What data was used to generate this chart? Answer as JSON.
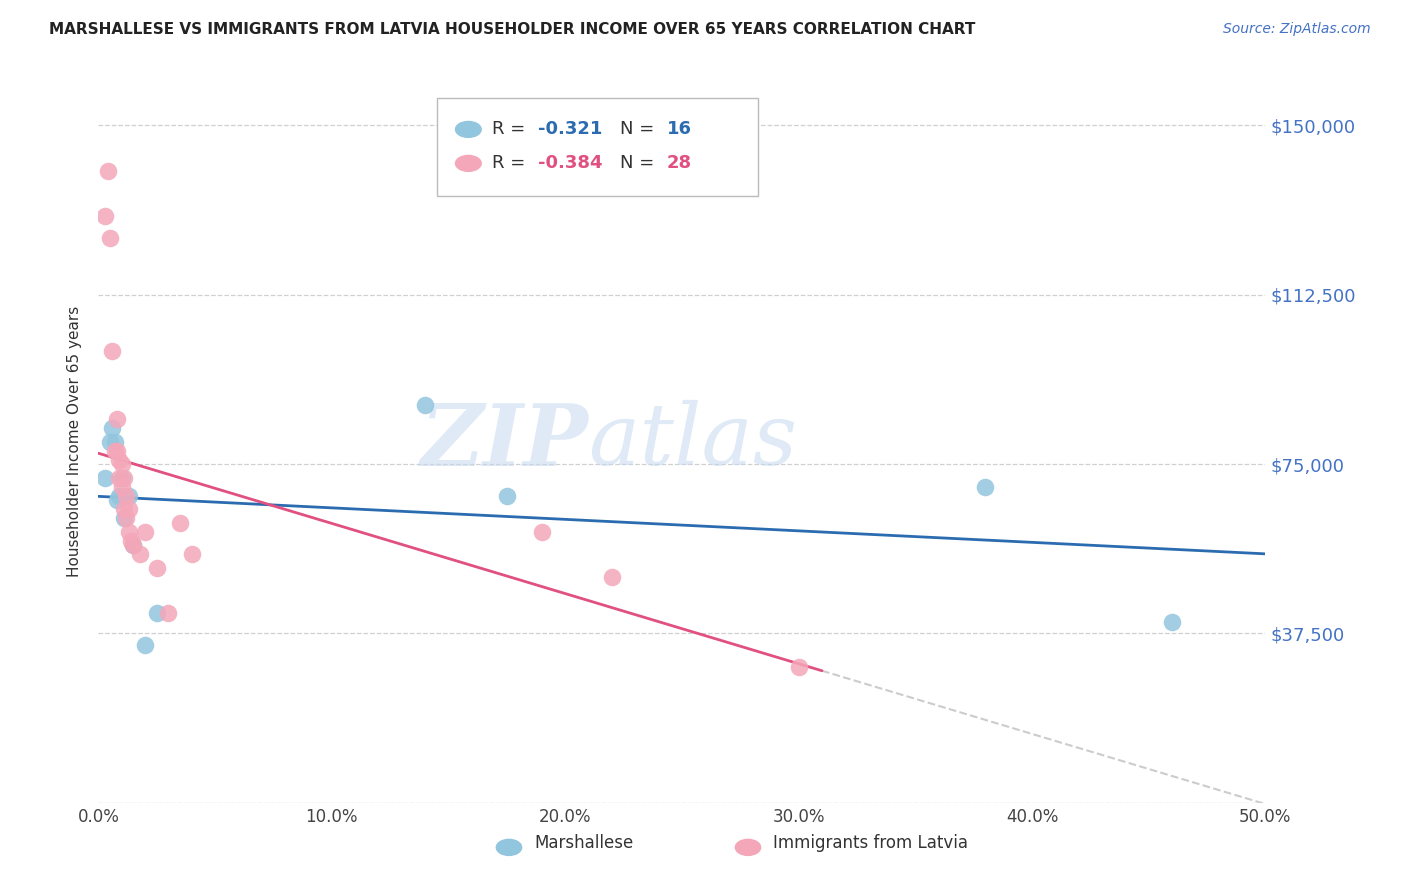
{
  "title": "MARSHALLESE VS IMMIGRANTS FROM LATVIA HOUSEHOLDER INCOME OVER 65 YEARS CORRELATION CHART",
  "source": "Source: ZipAtlas.com",
  "ylabel": "Householder Income Over 65 years",
  "legend_label1": "Marshallese",
  "legend_label2": "Immigrants from Latvia",
  "r1": "-0.321",
  "n1": "16",
  "r2": "-0.384",
  "n2": "28",
  "xmin": 0.0,
  "xmax": 0.5,
  "ymin": 0,
  "ymax": 160000,
  "yticks": [
    0,
    37500,
    75000,
    112500,
    150000
  ],
  "ytick_labels": [
    "",
    "$37,500",
    "$75,000",
    "$112,500",
    "$150,000"
  ],
  "xtick_labels": [
    "0.0%",
    "10.0%",
    "20.0%",
    "30.0%",
    "40.0%",
    "50.0%"
  ],
  "xticks": [
    0.0,
    0.1,
    0.2,
    0.3,
    0.4,
    0.5
  ],
  "color_blue": "#92c5de",
  "color_pink": "#f4a7b9",
  "line_blue": "#2b6cb0",
  "line_pink": "#e05080",
  "blue_x": [
    0.003,
    0.005,
    0.006,
    0.007,
    0.008,
    0.009,
    0.01,
    0.011,
    0.013,
    0.015,
    0.02,
    0.025,
    0.14,
    0.175,
    0.38,
    0.46
  ],
  "blue_y": [
    72000,
    80000,
    83000,
    80000,
    67000,
    68000,
    72000,
    63000,
    68000,
    57000,
    35000,
    42000,
    88000,
    68000,
    70000,
    40000
  ],
  "pink_x": [
    0.003,
    0.004,
    0.005,
    0.006,
    0.007,
    0.008,
    0.008,
    0.009,
    0.009,
    0.01,
    0.01,
    0.011,
    0.011,
    0.012,
    0.012,
    0.013,
    0.013,
    0.014,
    0.015,
    0.018,
    0.02,
    0.025,
    0.03,
    0.035,
    0.04,
    0.19,
    0.22,
    0.3
  ],
  "pink_y": [
    130000,
    140000,
    125000,
    100000,
    78000,
    85000,
    78000,
    76000,
    72000,
    75000,
    70000,
    72000,
    65000,
    68000,
    63000,
    65000,
    60000,
    58000,
    57000,
    55000,
    60000,
    52000,
    42000,
    62000,
    55000,
    60000,
    50000,
    30000
  ],
  "watermark_zip": "ZIP",
  "watermark_atlas": "atlas",
  "background_color": "#ffffff",
  "grid_color": "#d0d0d0",
  "title_color": "#222222",
  "axis_label_color": "#4472c4",
  "pink_line_xmax": 0.31
}
